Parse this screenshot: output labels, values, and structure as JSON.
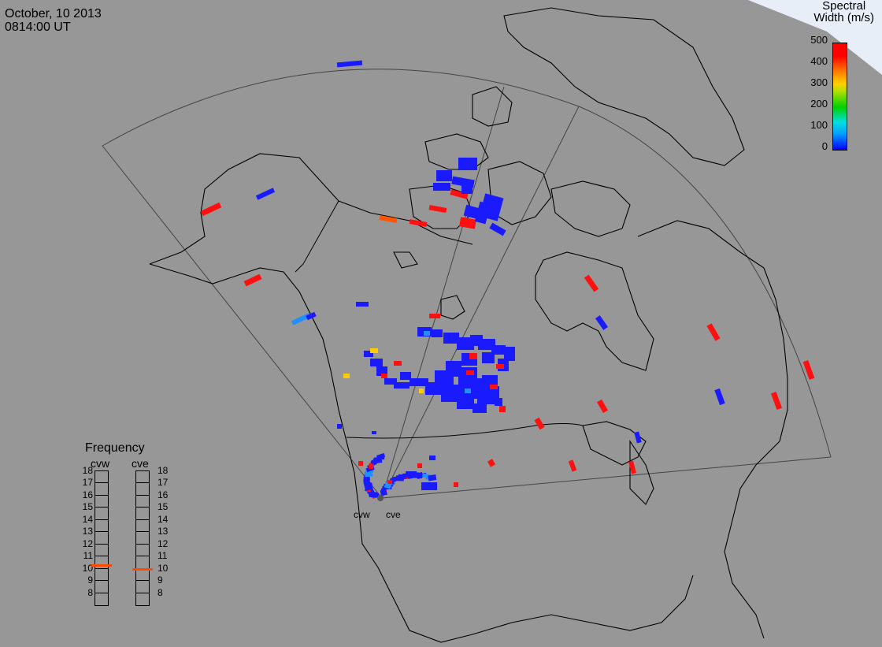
{
  "header": {
    "date": "October, 10 2013",
    "time": "0814:00 UT"
  },
  "colorbar": {
    "title_line1": "Spectral",
    "title_line2": "Width (m/s)",
    "ticks": [
      "500",
      "400",
      "300",
      "200",
      "100",
      "0"
    ],
    "range": [
      0,
      500
    ],
    "colors": [
      "#0000ff",
      "#00a0ff",
      "#00e0e0",
      "#00d000",
      "#b0e000",
      "#ffd000",
      "#ff7000",
      "#ff0000"
    ]
  },
  "frequency": {
    "title": "Frequency",
    "radars": [
      {
        "name": "cvw",
        "value_mhz": 10.8
      },
      {
        "name": "cve",
        "value_mhz": 10.5
      }
    ],
    "scale": [
      "18",
      "17",
      "16",
      "15",
      "14",
      "13",
      "12",
      "11",
      "10",
      "9",
      "8"
    ]
  },
  "sites": {
    "cvw": "cvw",
    "cve": "cve"
  },
  "colors": {
    "background": "#979797",
    "low_width": "#1a1aff",
    "mid_width": "#ffcc00",
    "high_width": "#ff1010",
    "orange": "#ff5500",
    "light_blue": "#2090ff"
  }
}
